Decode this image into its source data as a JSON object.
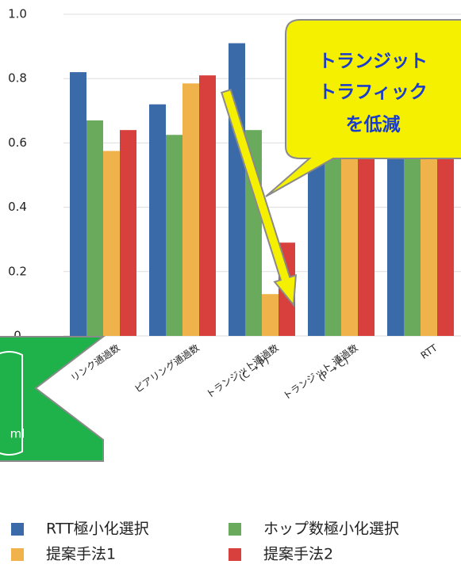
{
  "chart_data": {
    "type": "bar",
    "categories": [
      [
        "リンク通過数"
      ],
      [
        "ピアリング通過数"
      ],
      [
        "トランジット通過数",
        "(C → P)"
      ],
      [
        "トランジット 通過数",
        "(P → C)"
      ],
      [
        "RTT"
      ]
    ],
    "series": [
      {
        "name": "RTT極小化選択",
        "color": "#3a6aa8",
        "values": [
          0.82,
          0.72,
          0.91,
          0.58,
          0.6
        ]
      },
      {
        "name": "ホップ数極小化選択",
        "color": "#6aaa5c",
        "values": [
          0.67,
          0.625,
          0.64,
          0.6,
          0.6
        ]
      },
      {
        "name": "提案手法1",
        "color": "#f0b24a",
        "values": [
          0.575,
          0.785,
          0.13,
          0.57,
          0.58
        ]
      },
      {
        "name": "提案手法2",
        "color": "#d8403e",
        "values": [
          0.64,
          0.81,
          0.29,
          0.59,
          0.6
        ]
      }
    ],
    "ylim": [
      0,
      1
    ],
    "yticks": [
      0,
      0.2,
      0.4,
      0.6,
      0.8,
      {
        "value": 1,
        "label": "1.0"
      }
    ],
    "grid": true,
    "annotations": {
      "callout": [
        "トランジット",
        "トラフィック",
        "を低減"
      ],
      "green_note": "ml"
    }
  }
}
